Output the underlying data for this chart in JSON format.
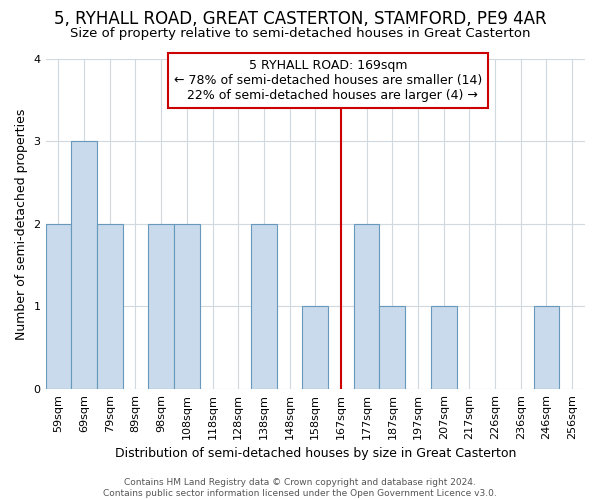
{
  "title": "5, RYHALL ROAD, GREAT CASTERTON, STAMFORD, PE9 4AR",
  "subtitle": "Size of property relative to semi-detached houses in Great Casterton",
  "xlabel": "Distribution of semi-detached houses by size in Great Casterton",
  "ylabel": "Number of semi-detached properties",
  "bins": [
    "59sqm",
    "69sqm",
    "79sqm",
    "89sqm",
    "98sqm",
    "108sqm",
    "118sqm",
    "128sqm",
    "138sqm",
    "148sqm",
    "158sqm",
    "167sqm",
    "177sqm",
    "187sqm",
    "197sqm",
    "207sqm",
    "217sqm",
    "226sqm",
    "236sqm",
    "246sqm",
    "256sqm"
  ],
  "values": [
    2,
    3,
    2,
    0,
    2,
    2,
    0,
    0,
    2,
    0,
    1,
    0,
    2,
    1,
    0,
    1,
    0,
    0,
    0,
    1,
    0
  ],
  "property_bin_index": 11,
  "property_label": "5 RYHALL ROAD: 169sqm",
  "pct_smaller": 78,
  "pct_larger": 22,
  "n_smaller": 14,
  "n_larger": 4,
  "bar_color": "#c8daeb",
  "bar_edge_color": "#6699bb",
  "property_line_color": "#cc0000",
  "box_edge_color": "#cc0000",
  "background_color": "#ffffff",
  "grid_color": "#d0d8e0",
  "annotation_box_bg": "#ffffff",
  "ylim": [
    0,
    4
  ],
  "footer": "Contains HM Land Registry data © Crown copyright and database right 2024.\nContains public sector information licensed under the Open Government Licence v3.0.",
  "title_fontsize": 12,
  "subtitle_fontsize": 9.5,
  "ylabel_fontsize": 9,
  "xlabel_fontsize": 9,
  "tick_fontsize": 8,
  "annotation_fontsize": 9,
  "footer_fontsize": 6.5
}
